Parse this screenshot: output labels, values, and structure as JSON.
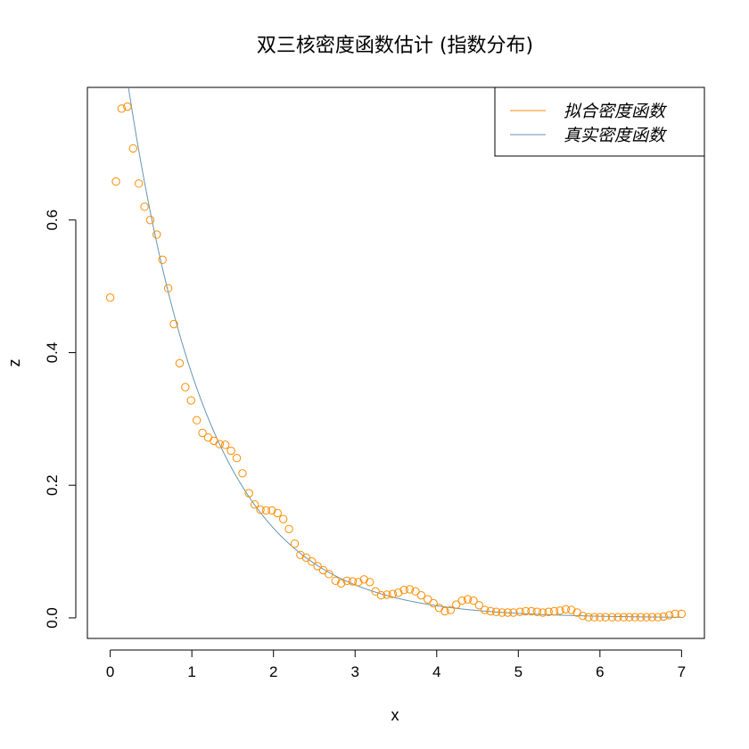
{
  "chart_data": {
    "type": "scatter",
    "title": "双三核密度函数估计 (指数分布)",
    "xlabel": "x",
    "ylabel": "z",
    "xlim": [
      -0.28,
      7.28
    ],
    "ylim": [
      -0.031,
      0.8
    ],
    "xticks": [
      0,
      1,
      2,
      3,
      4,
      5,
      6,
      7
    ],
    "yticks": [
      0.0,
      0.2,
      0.4,
      0.6
    ],
    "ytick_labels": [
      "0.0",
      "0.2",
      "0.4",
      "0.6"
    ],
    "grid": false,
    "legend_position": "top-right",
    "series": [
      {
        "name": "拟合密度函数",
        "kind": "points",
        "color": "#ff8c00",
        "x": [
          0.0,
          0.07,
          0.14,
          0.21,
          0.28,
          0.35,
          0.42,
          0.49,
          0.57,
          0.64,
          0.71,
          0.78,
          0.85,
          0.92,
          0.99,
          1.06,
          1.13,
          1.2,
          1.27,
          1.34,
          1.41,
          1.48,
          1.55,
          1.62,
          1.7,
          1.77,
          1.84,
          1.91,
          1.98,
          2.05,
          2.12,
          2.19,
          2.26,
          2.33,
          2.4,
          2.47,
          2.54,
          2.61,
          2.68,
          2.76,
          2.83,
          2.9,
          2.97,
          3.04,
          3.11,
          3.18,
          3.25,
          3.32,
          3.39,
          3.46,
          3.53,
          3.6,
          3.67,
          3.74,
          3.81,
          3.89,
          3.96,
          4.03,
          4.1,
          4.17,
          4.24,
          4.31,
          4.38,
          4.45,
          4.52,
          4.59,
          4.66,
          4.73,
          4.8,
          4.87,
          4.94,
          5.02,
          5.09,
          5.16,
          5.23,
          5.3,
          5.37,
          5.44,
          5.51,
          5.58,
          5.65,
          5.72,
          5.79,
          5.86,
          5.93,
          6.0,
          6.07,
          6.15,
          6.22,
          6.29,
          6.36,
          6.43,
          6.5,
          6.57,
          6.64,
          6.71,
          6.78,
          6.85,
          6.92,
          7.0
        ],
        "y": [
          0.483,
          0.658,
          0.768,
          0.771,
          0.708,
          0.655,
          0.62,
          0.6,
          0.578,
          0.54,
          0.497,
          0.443,
          0.384,
          0.348,
          0.328,
          0.298,
          0.279,
          0.272,
          0.267,
          0.262,
          0.261,
          0.252,
          0.241,
          0.218,
          0.188,
          0.171,
          0.163,
          0.162,
          0.162,
          0.158,
          0.149,
          0.134,
          0.112,
          0.095,
          0.091,
          0.085,
          0.078,
          0.072,
          0.066,
          0.056,
          0.052,
          0.056,
          0.055,
          0.054,
          0.058,
          0.054,
          0.04,
          0.034,
          0.035,
          0.036,
          0.038,
          0.042,
          0.043,
          0.04,
          0.034,
          0.028,
          0.022,
          0.015,
          0.01,
          0.012,
          0.02,
          0.026,
          0.028,
          0.026,
          0.019,
          0.012,
          0.01,
          0.009,
          0.008,
          0.008,
          0.008,
          0.009,
          0.01,
          0.01,
          0.009,
          0.008,
          0.009,
          0.01,
          0.011,
          0.013,
          0.012,
          0.008,
          0.003,
          0.001,
          0.001,
          0.001,
          0.001,
          0.001,
          0.001,
          0.001,
          0.001,
          0.001,
          0.001,
          0.001,
          0.001,
          0.001,
          0.002,
          0.004,
          0.006,
          0.006
        ]
      },
      {
        "name": "真实密度函数",
        "kind": "line",
        "color": "#6495b4",
        "function": "exp(-x)",
        "x_range": [
          0,
          7
        ]
      }
    ]
  }
}
